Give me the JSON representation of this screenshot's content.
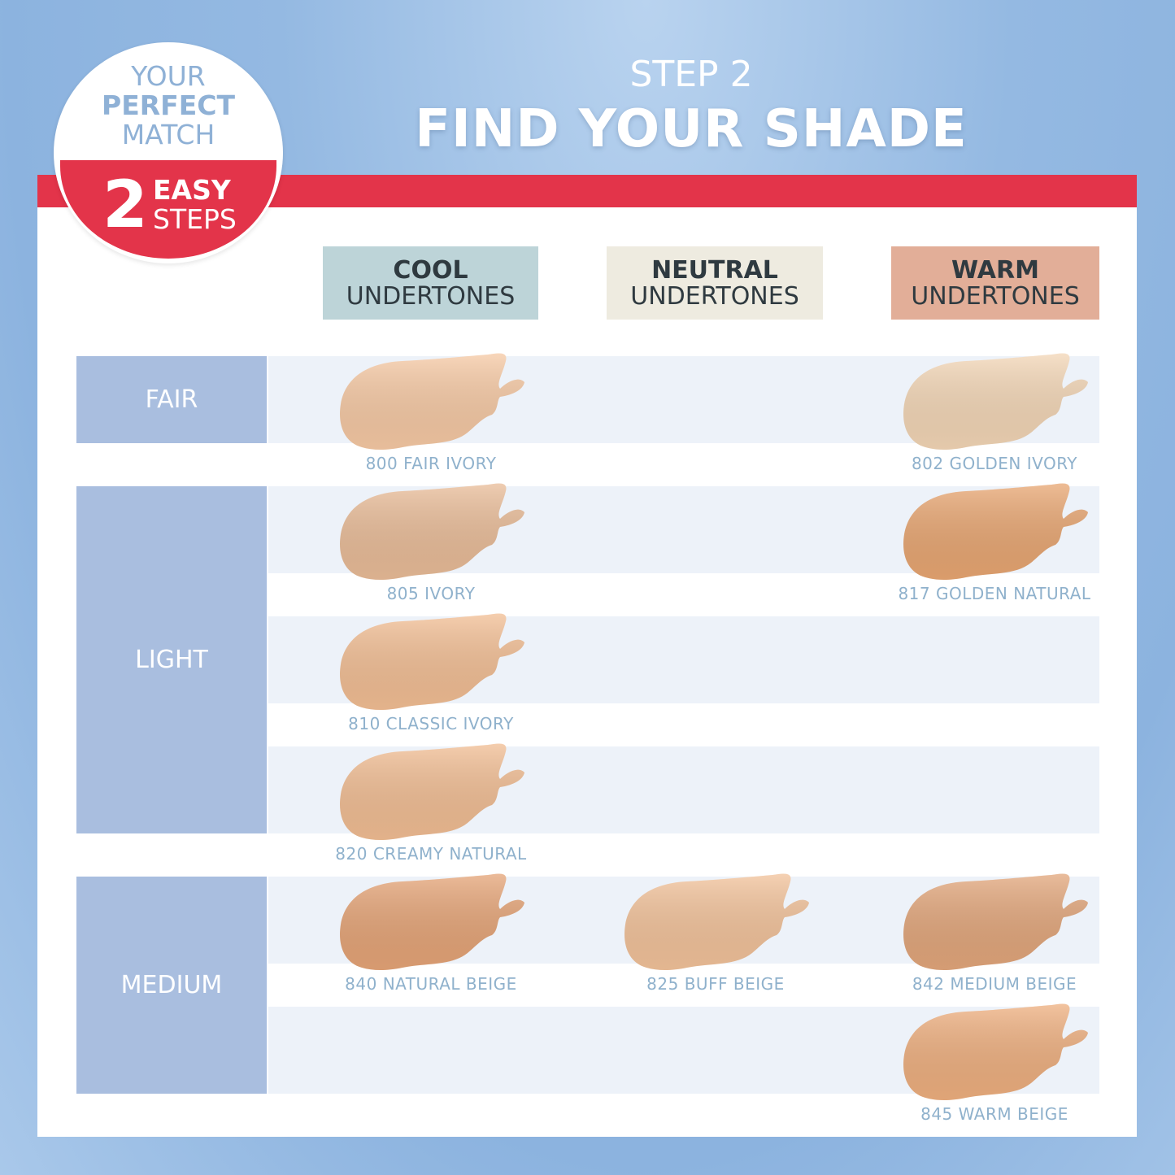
{
  "header": {
    "step": "STEP 2",
    "title": "FIND YOUR SHADE"
  },
  "badge": {
    "line1": "YOUR",
    "line2": "PERFECT",
    "line3": "MATCH",
    "number": "2",
    "line4": "EASY",
    "line5": "STEPS",
    "accent": "#e3344a"
  },
  "columns": [
    {
      "bold": "COOL",
      "sub": "UNDERTONES",
      "color": "#bdd4d8"
    },
    {
      "bold": "NEUTRAL",
      "sub": "UNDERTONES",
      "color": "#eeebe0"
    },
    {
      "bold": "WARM",
      "sub": "UNDERTONES",
      "color": "#e2ae98"
    }
  ],
  "levels": [
    "FAIR",
    "LIGHT",
    "MEDIUM"
  ],
  "shades": [
    {
      "name": "800 FAIR IVORY",
      "row": 0,
      "col": 0,
      "color": "#f6c9a4"
    },
    {
      "name": "802 GOLDEN IVORY",
      "row": 0,
      "col": 2,
      "color": "#f3d6b6"
    },
    {
      "name": "805 IVORY",
      "row": 1,
      "col": 0,
      "color": "#e9bc98"
    },
    {
      "name": "817 GOLDEN NATURAL",
      "row": 1,
      "col": 2,
      "color": "#e8a672"
    },
    {
      "name": "810 CLASSIC IVORY",
      "row": 2,
      "col": 0,
      "color": "#f2be94"
    },
    {
      "name": "820 CREAMY NATURAL",
      "row": 3,
      "col": 0,
      "color": "#f1bd93"
    },
    {
      "name": "840 NATURAL BEIGE",
      "row": 4,
      "col": 0,
      "color": "#e5a477"
    },
    {
      "name": "825 BUFF BEIGE",
      "row": 4,
      "col": 1,
      "color": "#f2c29a"
    },
    {
      "name": "842 MEDIUM BEIGE",
      "row": 4,
      "col": 2,
      "color": "#e2a67b"
    },
    {
      "name": "845 WARM BEIGE",
      "row": 5,
      "col": 2,
      "color": "#eeaf7f"
    }
  ]
}
